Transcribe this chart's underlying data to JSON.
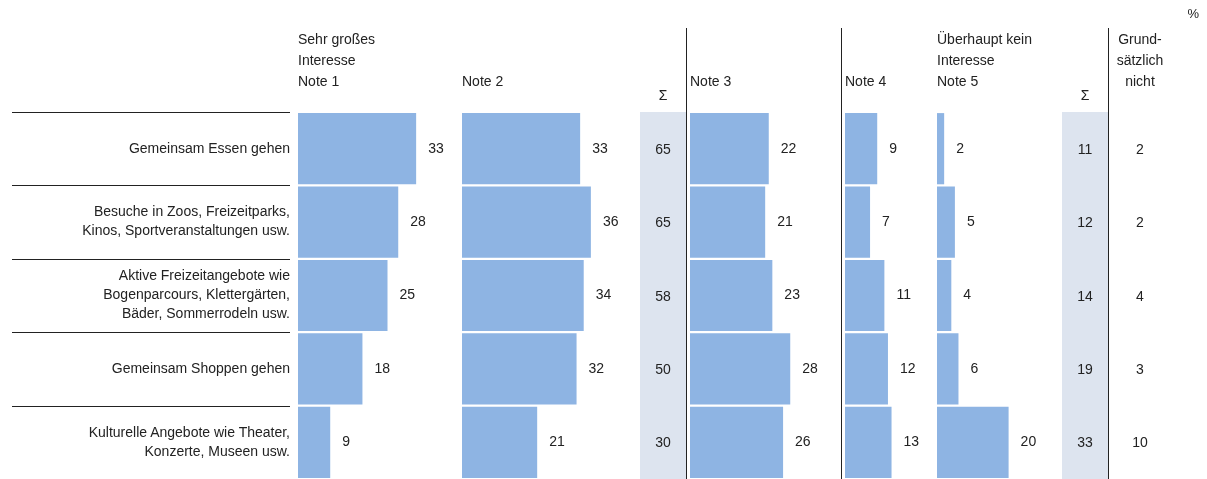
{
  "chart_data": [
    {
      "type": "bar",
      "orientation": "horizontal",
      "subtitle": "Sehr großes Interesse",
      "title": "Note 1",
      "categories": [
        "Gemeinsam Essen gehen",
        "Besuche in Zoos, Freizeitparks, Kinos, Sportveranstaltungen usw.",
        "Aktive Freizeitangebote wie Bogenparcours, Klettergärten, Bäder, Sommerrodeln usw.",
        "Gemeinsam Shoppen gehen",
        "Kulturelle Angebote wie Theater, Konzerte, Museen usw."
      ],
      "values": [
        33,
        28,
        25,
        18,
        9
      ],
      "color": "#8eb4e3",
      "data_labels": true,
      "tick_labels": "y"
    },
    {
      "type": "bar",
      "orientation": "horizontal",
      "title": "Note 2",
      "categories": [
        null,
        null,
        null,
        null,
        null
      ],
      "values": [
        33,
        36,
        34,
        32,
        21
      ],
      "color": "#8eb4e3",
      "data_labels": true,
      "tick_labels": false
    },
    {
      "type": "other",
      "title": "Σ",
      "values": [
        65,
        65,
        58,
        50,
        30
      ],
      "data_labels": true
    },
    {
      "type": "bar",
      "orientation": "horizontal",
      "title": "Note 3",
      "categories": [
        null,
        null,
        null,
        null,
        null
      ],
      "values": [
        22,
        21,
        23,
        28,
        26
      ],
      "color": "#8eb4e3",
      "data_labels": true,
      "tick_labels": false
    },
    {
      "type": "bar",
      "orientation": "horizontal",
      "title": "Note 4",
      "categories": [
        null,
        null,
        null,
        null,
        null
      ],
      "values": [
        9,
        7,
        11,
        12,
        13
      ],
      "color": "#8eb4e3",
      "data_labels": true,
      "tick_labels": false
    },
    {
      "type": "bar",
      "orientation": "horizontal",
      "subtitle": "Überhaupt kein Interesse",
      "title": "Note 5",
      "categories": [
        null,
        null,
        null,
        null,
        null
      ],
      "values": [
        2,
        5,
        4,
        6,
        20
      ],
      "color": "#8eb4e3",
      "data_labels": true,
      "tick_labels": false
    },
    {
      "type": "other",
      "title": "Σ",
      "values": [
        11,
        12,
        14,
        19,
        33
      ],
      "data_labels": true
    },
    {
      "type": "other",
      "title": "Grund-sätzlich nicht",
      "values": [
        2,
        2,
        4,
        3,
        10
      ],
      "data_labels": true,
      "annotations": [
        "%"
      ]
    }
  ]
}
